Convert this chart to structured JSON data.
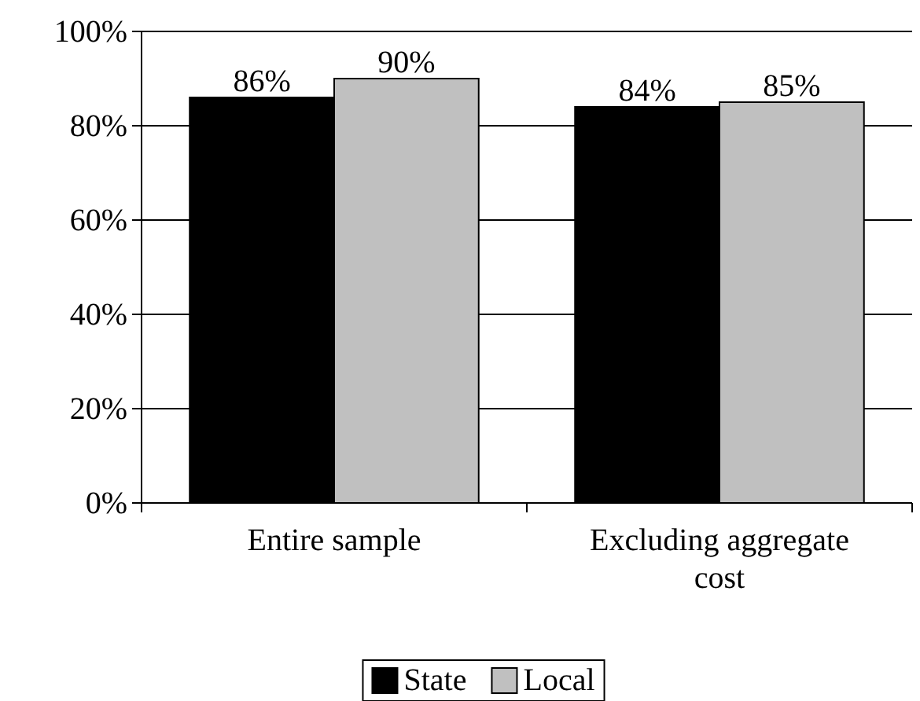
{
  "chart_data": {
    "type": "bar",
    "categories": [
      "Entire sample",
      "Excluding aggregate cost"
    ],
    "series": [
      {
        "name": "State",
        "color": "#000000",
        "values": [
          86,
          84
        ],
        "value_labels": [
          "86%",
          "84%"
        ]
      },
      {
        "name": "Local",
        "color": "#c0c0c0",
        "values": [
          90,
          85
        ],
        "value_labels": [
          "90%",
          "85%"
        ]
      }
    ],
    "ylim": [
      0,
      100
    ],
    "yticks": [
      {
        "value": 0,
        "label": "0%"
      },
      {
        "value": 20,
        "label": "20%"
      },
      {
        "value": 40,
        "label": "40%"
      },
      {
        "value": 60,
        "label": "60%"
      },
      {
        "value": 80,
        "label": "80%"
      },
      {
        "value": 100,
        "label": "100%"
      }
    ],
    "grid": "y",
    "legend": "bottom"
  }
}
